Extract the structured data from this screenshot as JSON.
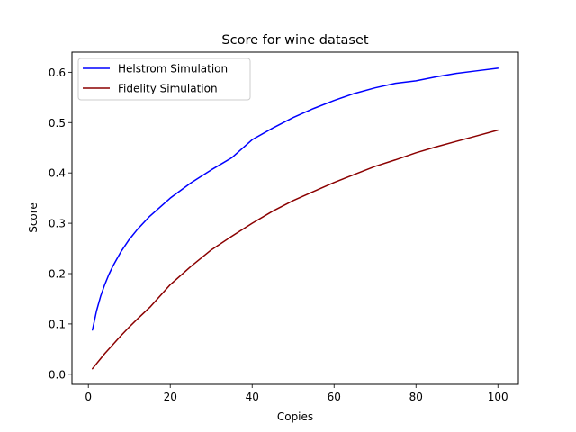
{
  "chart_data": {
    "type": "line",
    "title": "Score for wine dataset",
    "xlabel": "Copies",
    "ylabel": "Score",
    "xlim": [
      -4,
      105
    ],
    "ylim": [
      -0.02,
      0.64
    ],
    "xticks": [
      0,
      20,
      40,
      60,
      80,
      100
    ],
    "xtick_labels": [
      "0",
      "20",
      "40",
      "60",
      "80",
      "100"
    ],
    "yticks": [
      0.0,
      0.1,
      0.2,
      0.3,
      0.4,
      0.5,
      0.6
    ],
    "ytick_labels": [
      "0.0",
      "0.1",
      "0.2",
      "0.3",
      "0.4",
      "0.5",
      "0.6"
    ],
    "grid": false,
    "legend_position": "top-left",
    "x": [
      1,
      2,
      3,
      4,
      5,
      6,
      8,
      10,
      12,
      15,
      20,
      25,
      30,
      35,
      40,
      45,
      50,
      55,
      60,
      65,
      70,
      75,
      80,
      85,
      90,
      95,
      100
    ],
    "series": [
      {
        "name": "Helstrom Simulation",
        "color": "#0000ff",
        "values": [
          0.088,
          0.126,
          0.155,
          0.178,
          0.198,
          0.215,
          0.244,
          0.268,
          0.288,
          0.314,
          0.35,
          0.38,
          0.406,
          0.43,
          0.466,
          0.489,
          0.51,
          0.528,
          0.544,
          0.558,
          0.569,
          0.578,
          0.583,
          0.591,
          0.598,
          0.603,
          0.608
        ]
      },
      {
        "name": "Fidelity Simulation",
        "color": "#8b0000",
        "values": [
          0.011,
          0.021,
          0.031,
          0.041,
          0.05,
          0.059,
          0.077,
          0.094,
          0.11,
          0.133,
          0.178,
          0.214,
          0.247,
          0.274,
          0.3,
          0.324,
          0.345,
          0.363,
          0.381,
          0.397,
          0.413,
          0.426,
          0.44,
          0.452,
          0.463,
          0.474,
          0.485
        ]
      }
    ]
  }
}
